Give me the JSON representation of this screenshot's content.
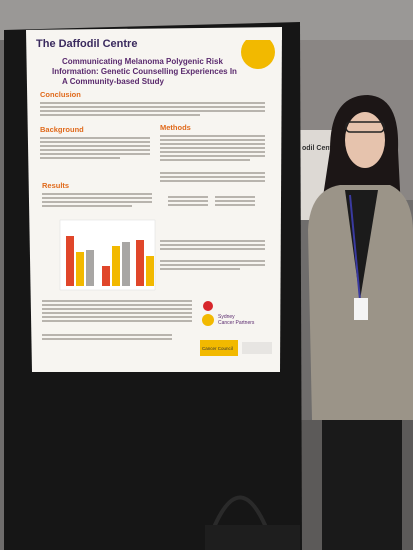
{
  "poster": {
    "brand": "The Daffodil Centre",
    "title_lines": [
      "Communicating Melanoma Polygenic Risk",
      "Information: Genetic Counselling Experiences In",
      "A Community-based Study"
    ],
    "sections": [
      "Conclusion",
      "Background",
      "Methods",
      "Results"
    ],
    "logos": [
      "Sydney",
      "Cancer Partners",
      "Cancer Council"
    ]
  },
  "background_poster": {
    "fragment": "odil Centre"
  }
}
